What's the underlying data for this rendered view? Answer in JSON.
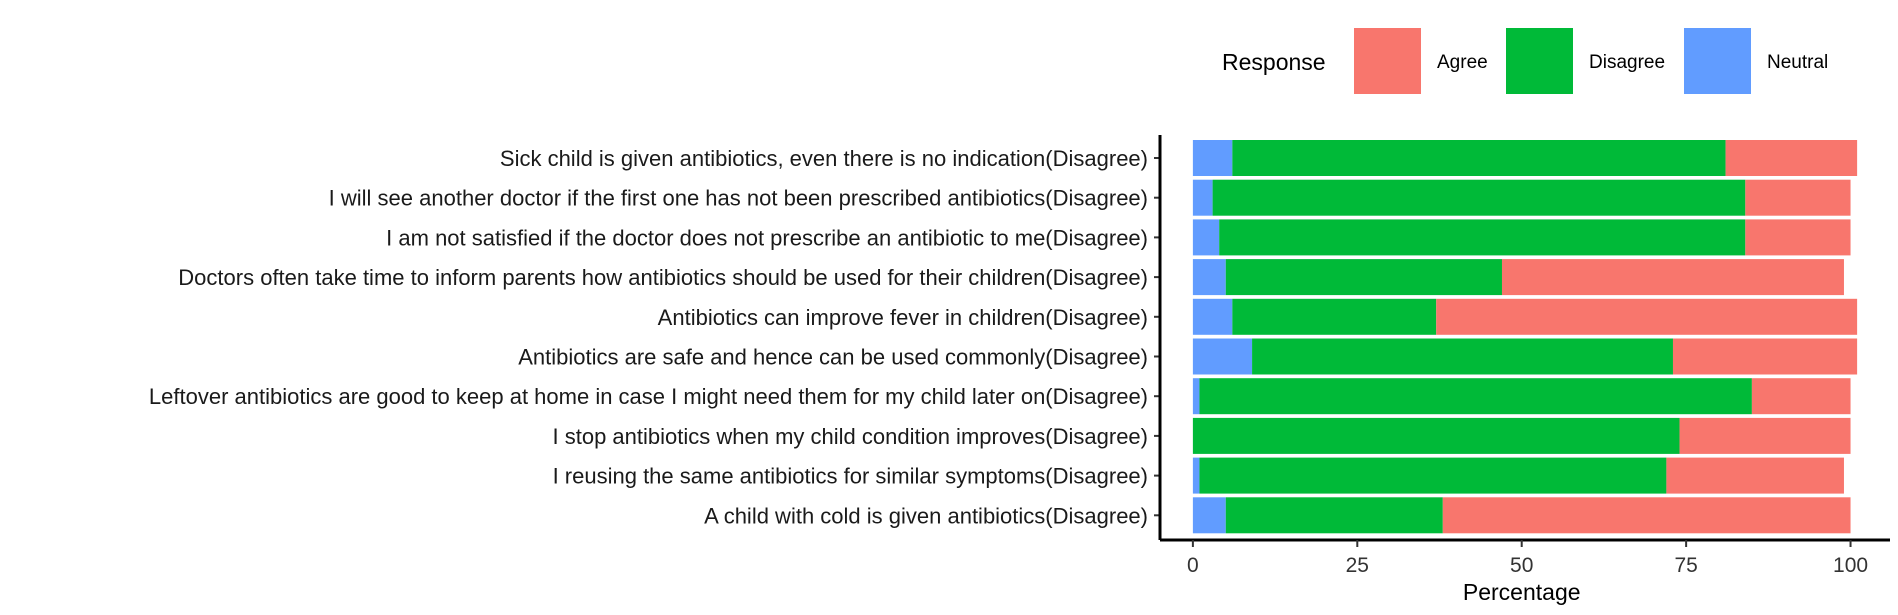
{
  "chart_data": {
    "type": "bar",
    "orientation": "horizontal",
    "stacked": true,
    "categories": [
      "Sick child is given antibiotics, even there is no indication(Disagree)",
      "I will see another doctor if the first one has not been prescribed antibiotics(Disagree)",
      "I am not satisfied if the doctor does not prescribe an antibiotic to me(Disagree)",
      "Doctors often take time to inform parents how antibiotics should be used for their children(Disagree)",
      "Antibiotics can improve fever in children(Disagree)",
      "Antibiotics are safe and hence can be used commonly(Disagree)",
      "Leftover antibiotics are good to keep at home in case I might need them for my child later on(Disagree)",
      "I stop antibiotics when my child condition improves(Disagree)",
      "I reusing the same antibiotics for similar symptoms(Disagree)",
      "A child with cold is given antibiotics(Disagree)"
    ],
    "series": [
      {
        "name": "Neutral",
        "color": "#619CFF",
        "values": [
          6,
          3,
          4,
          5,
          6,
          9,
          1,
          0,
          1,
          5
        ]
      },
      {
        "name": "Disagree",
        "color": "#00BA38",
        "values": [
          75,
          81,
          80,
          42,
          31,
          64,
          84,
          74,
          71,
          33
        ]
      },
      {
        "name": "Agree",
        "color": "#F8766D",
        "values": [
          20,
          16,
          16,
          52,
          64,
          28,
          15,
          26,
          27,
          62
        ]
      }
    ],
    "xlabel": "Percentage",
    "ylabel": "",
    "xlim": [
      -5,
      106
    ],
    "xticks": [
      "0",
      "25",
      "50",
      "75",
      "100"
    ],
    "legend": {
      "title": "Response",
      "placement": "top",
      "entries": [
        {
          "label": "Agree",
          "color": "#F8766D"
        },
        {
          "label": "Disagree",
          "color": "#00BA38"
        },
        {
          "label": "Neutral",
          "color": "#619CFF"
        }
      ]
    },
    "grid": false
  }
}
